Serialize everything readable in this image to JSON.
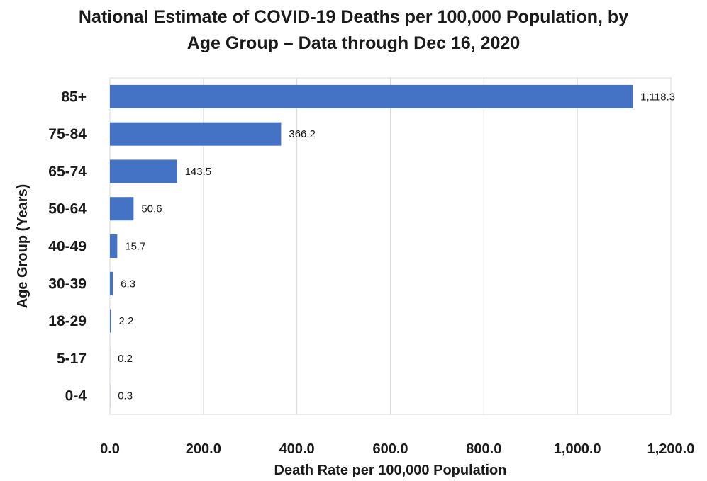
{
  "chart_data": {
    "type": "bar",
    "orientation": "horizontal",
    "title_line1": "National Estimate of COVID-19 Deaths per 100,000 Population, by",
    "title_line2": "Age Group – Data through Dec 16, 2020",
    "xlabel": "Death Rate per 100,000 Population",
    "ylabel": "Age Group (Years)",
    "categories": [
      "85+",
      "75-84",
      "65-74",
      "50-64",
      "40-49",
      "30-39",
      "18-29",
      "5-17",
      "0-4"
    ],
    "values": [
      1118.3,
      366.2,
      143.5,
      50.6,
      15.7,
      6.3,
      2.2,
      0.2,
      0.3
    ],
    "value_labels": [
      "1,118.3",
      "366.2",
      "143.5",
      "50.6",
      "15.7",
      "6.3",
      "2.2",
      "0.2",
      "0.3"
    ],
    "xlim": [
      0,
      1200
    ],
    "xticks": [
      0,
      200,
      400,
      600,
      800,
      1000,
      1200
    ],
    "xtick_labels": [
      "0.0",
      "200.0",
      "400.0",
      "600.0",
      "800.0",
      "1,000.0",
      "1,200.0"
    ],
    "grid": "vertical",
    "legend": "none",
    "bar_color": "#4472c4"
  }
}
